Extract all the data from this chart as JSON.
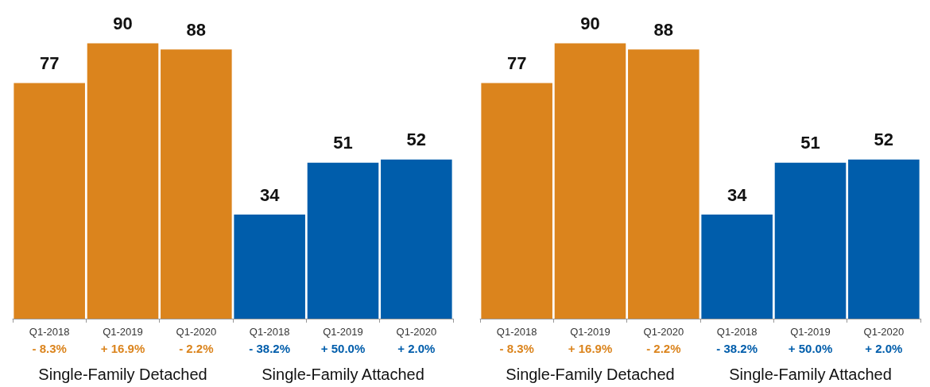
{
  "chart_data": [
    {
      "type": "bar",
      "categories": [
        "Q1-2018",
        "Q1-2019",
        "Q1-2020",
        "Q1-2018",
        "Q1-2019",
        "Q1-2020"
      ],
      "values": [
        77,
        90,
        88,
        34,
        51,
        52
      ],
      "colors": [
        "#db841d",
        "#db841d",
        "#db841d",
        "#005dab",
        "#005dab",
        "#005dab"
      ],
      "data_labels": true,
      "annotations": [
        "- 8.3%",
        "+ 16.9%",
        "- 2.2%",
        "- 38.2%",
        "+ 50.0%",
        "+ 2.0%",
        "Single-Family Detached",
        "Single-Family Attached"
      ]
    },
    {
      "type": "bar",
      "categories": [
        "Q1-2018",
        "Q1-2019",
        "Q1-2020",
        "Q1-2018",
        "Q1-2019",
        "Q1-2020"
      ],
      "values": [
        77,
        90,
        88,
        34,
        51,
        52
      ],
      "colors": [
        "#db841d",
        "#db841d",
        "#db841d",
        "#005dab",
        "#005dab",
        "#005dab"
      ],
      "data_labels": true,
      "annotations": [
        "- 8.3%",
        "+ 16.9%",
        "- 2.2%",
        "- 38.2%",
        "+ 50.0%",
        "+ 2.0%",
        "Single-Family Detached",
        "Single-Family Attached"
      ]
    }
  ]
}
